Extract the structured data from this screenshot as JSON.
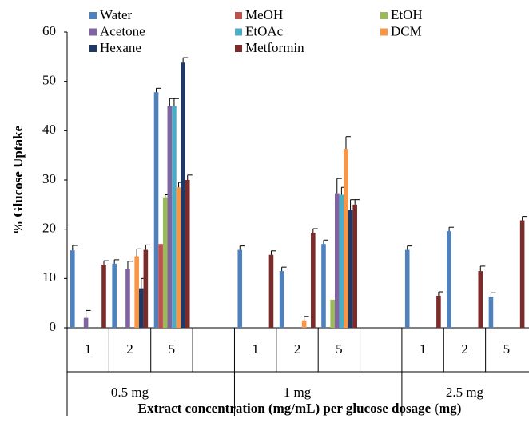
{
  "chart_data": {
    "type": "bar",
    "ylabel": "% Glucose Uptake",
    "xlabel": "Extract concentration (mg/mL) per glucose dosage (mg)",
    "groups": [
      "0.5 mg",
      "1 mg",
      "2.5 mg"
    ],
    "categories": [
      "1",
      "2",
      "5",
      null,
      "1",
      "2",
      "5",
      null,
      "1",
      "2",
      "5"
    ],
    "ylim": [
      0,
      60
    ],
    "yticks": [
      0,
      10,
      20,
      30,
      40,
      50,
      60
    ],
    "series": [
      {
        "name": "Water",
        "color": "#4f81bd",
        "values": [
          15.7,
          13,
          47.8,
          null,
          15.8,
          11.5,
          17,
          null,
          15.8,
          19.6,
          6.3
        ],
        "errors": [
          1,
          0.8,
          0.8,
          null,
          0.8,
          0.8,
          0.8,
          null,
          0.8,
          0.8,
          0.8
        ]
      },
      {
        "name": "MeOH",
        "color": "#c0504d",
        "values": [
          null,
          null,
          17,
          null,
          null,
          null,
          null,
          null,
          null,
          null,
          null
        ],
        "errors": [
          null,
          null,
          null,
          null,
          null,
          null,
          null,
          null,
          null,
          null,
          null
        ]
      },
      {
        "name": "EtOH",
        "color": "#9bbb59",
        "values": [
          null,
          null,
          26.5,
          null,
          null,
          null,
          5.7,
          null,
          null,
          null,
          null
        ],
        "errors": [
          null,
          null,
          0.5,
          null,
          null,
          null,
          null,
          null,
          null,
          null,
          null
        ]
      },
      {
        "name": "Acetone",
        "color": "#8064a2",
        "values": [
          2,
          12,
          45,
          null,
          null,
          null,
          27.3,
          null,
          null,
          null,
          null
        ],
        "errors": [
          1.5,
          1.5,
          1.5,
          null,
          null,
          null,
          3,
          null,
          null,
          null,
          null
        ]
      },
      {
        "name": "EtOAc",
        "color": "#4bacc6",
        "values": [
          null,
          null,
          45,
          null,
          null,
          null,
          27,
          null,
          null,
          null,
          null
        ],
        "errors": [
          null,
          null,
          1.5,
          null,
          null,
          null,
          1.5,
          null,
          null,
          null,
          null
        ]
      },
      {
        "name": "DCM",
        "color": "#f79646",
        "values": [
          null,
          14.5,
          28.5,
          null,
          null,
          1.5,
          36.3,
          null,
          null,
          null,
          null
        ],
        "errors": [
          null,
          1.5,
          1,
          null,
          null,
          0.8,
          2.5,
          null,
          null,
          null,
          null
        ]
      },
      {
        "name": "Hexane",
        "color": "#1f3864",
        "values": [
          null,
          8,
          53.8,
          null,
          null,
          null,
          24,
          null,
          null,
          null,
          null
        ],
        "errors": [
          null,
          2,
          1,
          null,
          null,
          null,
          2,
          null,
          null,
          null,
          null
        ]
      },
      {
        "name": "Metformin",
        "color": "#7b2c2a",
        "values": [
          12.8,
          15.8,
          30,
          null,
          14.8,
          19.3,
          25,
          null,
          6.5,
          11.5,
          21.8
        ],
        "errors": [
          0.8,
          1,
          1,
          null,
          0.8,
          0.8,
          1,
          null,
          0.8,
          1,
          0.8
        ]
      }
    ]
  }
}
